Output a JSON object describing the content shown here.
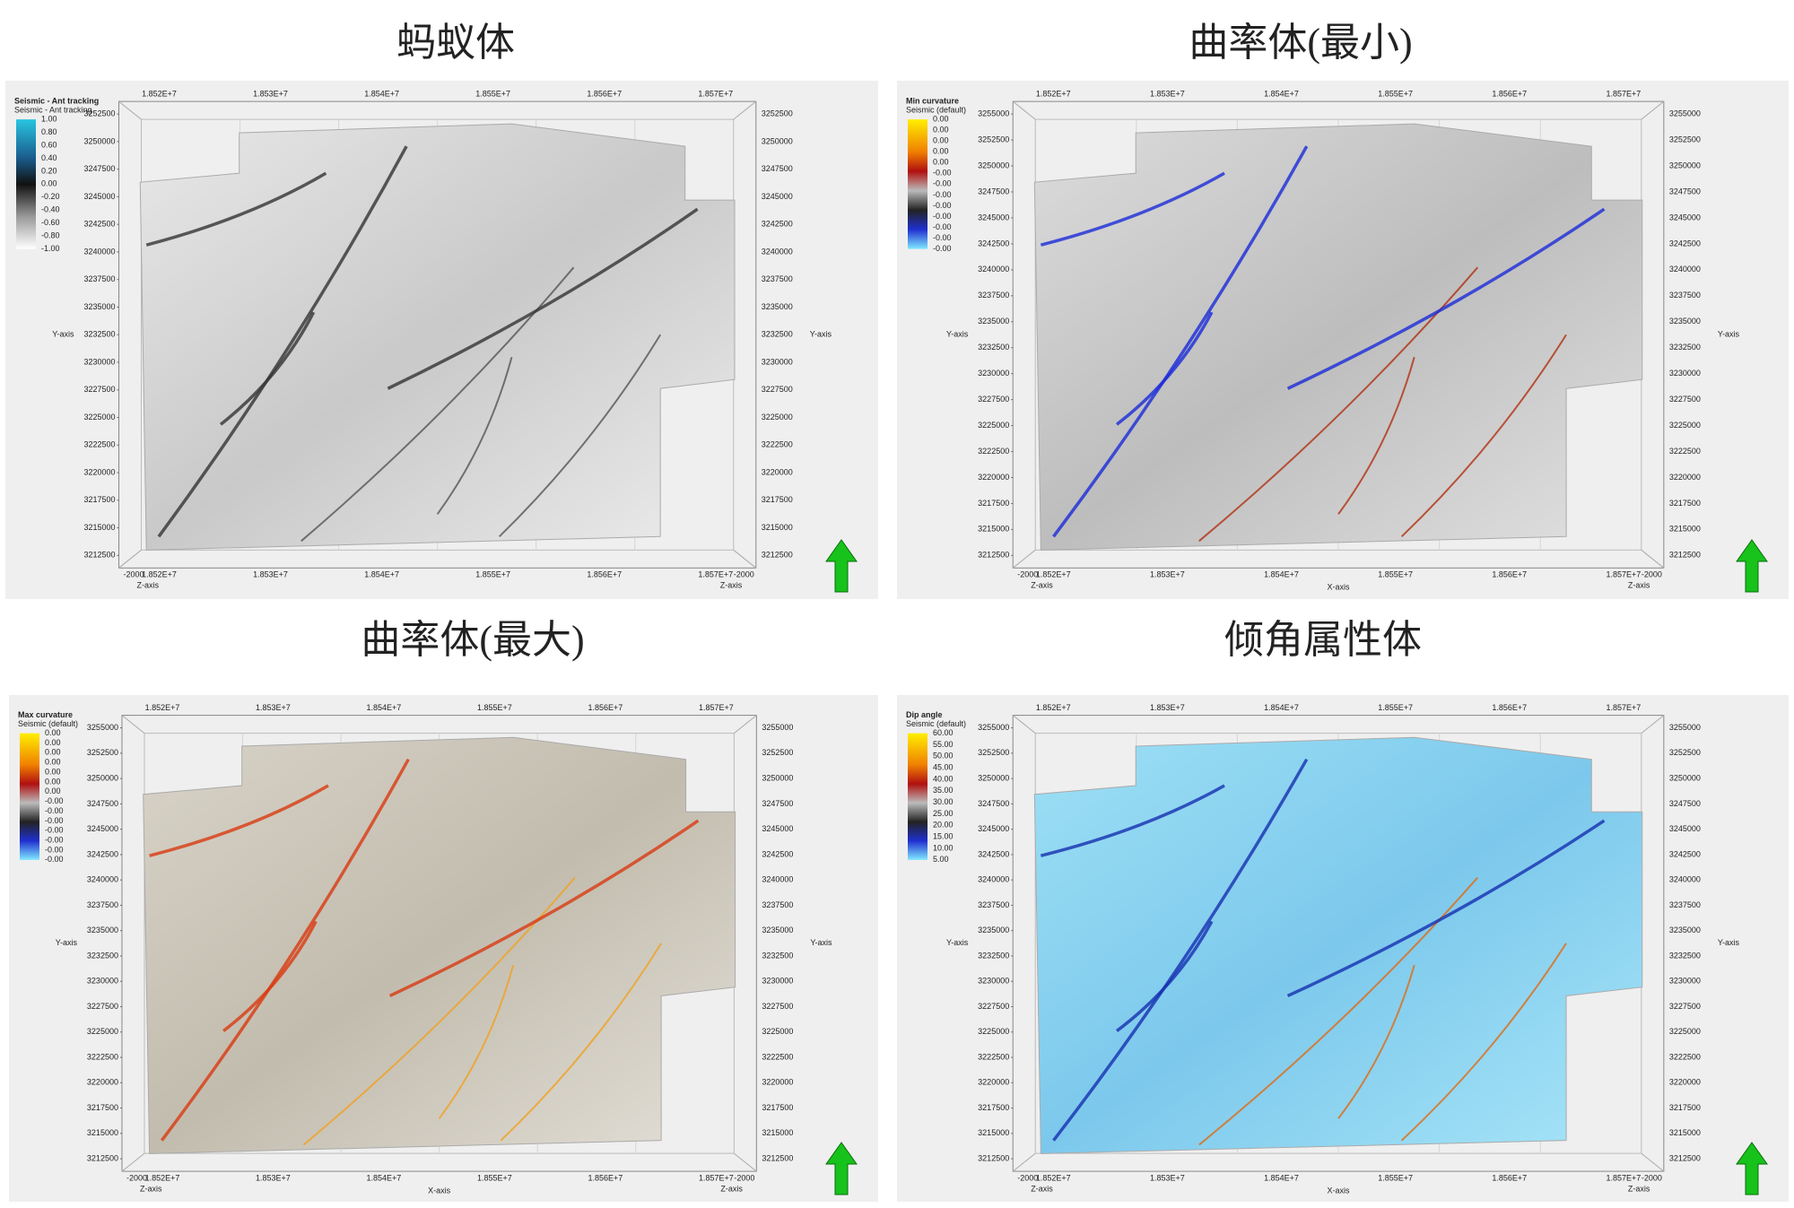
{
  "panels": [
    {
      "title": "蚂蚁体",
      "legend_title": "Seismic - Ant tracking",
      "legend_subtitle": "Seismic - Ant tracking",
      "legend_labels": [
        "1.00",
        "0.80",
        "0.60",
        "0.40",
        "0.20",
        "0.00",
        "-0.20",
        "-0.40",
        "-0.60",
        "-0.80",
        "-1.00"
      ],
      "x_ticks": [
        "1.852E+7",
        "1.853E+7",
        "1.854E+7",
        "1.855E+7",
        "1.856E+7",
        "1.857E+7"
      ],
      "y_ticks": [
        "3252500",
        "3250000",
        "3247500",
        "3245000",
        "3242500",
        "3240000",
        "3237500",
        "3235000",
        "3232500",
        "3230000",
        "3227500",
        "3225000",
        "3222500",
        "3220000",
        "3217500",
        "3215000",
        "3212500"
      ],
      "y_axis_label": "Y-axis",
      "z_axis_label": "Z-axis",
      "z_value": "-2000"
    },
    {
      "title": "曲率体(最小)",
      "legend_title": "Min curvature",
      "legend_subtitle": "Seismic (default)",
      "legend_labels": [
        "0.00",
        "0.00",
        "0.00",
        "0.00",
        "0.00",
        "-0.00",
        "-0.00",
        "-0.00",
        "-0.00",
        "-0.00",
        "-0.00",
        "-0.00",
        "-0.00"
      ],
      "x_ticks": [
        "1.852E+7",
        "1.853E+7",
        "1.854E+7",
        "1.855E+7",
        "1.856E+7",
        "1.857E+7"
      ],
      "y_ticks": [
        "3255000",
        "3252500",
        "3250000",
        "3247500",
        "3245000",
        "3242500",
        "3240000",
        "3237500",
        "3235000",
        "3232500",
        "3230000",
        "3227500",
        "3225000",
        "3222500",
        "3220000",
        "3217500",
        "3215000",
        "3212500"
      ],
      "y_axis_label": "Y-axis",
      "x_axis_label": "X-axis",
      "z_axis_label": "Z-axis",
      "z_value": "-2000"
    },
    {
      "title": "曲率体(最大)",
      "legend_title": "Max curvature",
      "legend_subtitle": "Seismic (default)",
      "legend_labels": [
        "0.00",
        "0.00",
        "0.00",
        "0.00",
        "0.00",
        "0.00",
        "0.00",
        "-0.00",
        "-0.00",
        "-0.00",
        "-0.00",
        "-0.00",
        "-0.00",
        "-0.00"
      ],
      "x_ticks": [
        "1.852E+7",
        "1.853E+7",
        "1.854E+7",
        "1.855E+7",
        "1.856E+7",
        "1.857E+7"
      ],
      "y_ticks": [
        "3255000",
        "3252500",
        "3250000",
        "3247500",
        "3245000",
        "3242500",
        "3240000",
        "3237500",
        "3235000",
        "3232500",
        "3230000",
        "3227500",
        "3225000",
        "3222500",
        "3220000",
        "3217500",
        "3215000",
        "3212500"
      ],
      "y_axis_label": "Y-axis",
      "x_axis_label": "X-axis",
      "z_axis_label": "Z-axis",
      "z_value": "-2000"
    },
    {
      "title": "倾角属性体",
      "legend_title": "Dip angle",
      "legend_subtitle": "Seismic (default)",
      "legend_labels": [
        "60.00",
        "55.00",
        "50.00",
        "45.00",
        "40.00",
        "35.00",
        "30.00",
        "25.00",
        "20.00",
        "15.00",
        "10.00",
        "5.00"
      ],
      "x_ticks": [
        "1.852E+7",
        "1.853E+7",
        "1.854E+7",
        "1.855E+7",
        "1.856E+7",
        "1.857E+7"
      ],
      "y_ticks": [
        "3255000",
        "3252500",
        "3250000",
        "3247500",
        "3245000",
        "3242500",
        "3240000",
        "3237500",
        "3235000",
        "3232500",
        "3230000",
        "3227500",
        "3225000",
        "3222500",
        "3220000",
        "3217500",
        "3215000",
        "3212500"
      ],
      "y_axis_label": "Y-axis",
      "x_axis_label": "X-axis",
      "z_axis_label": "Z-axis",
      "z_value": "-2000"
    }
  ]
}
